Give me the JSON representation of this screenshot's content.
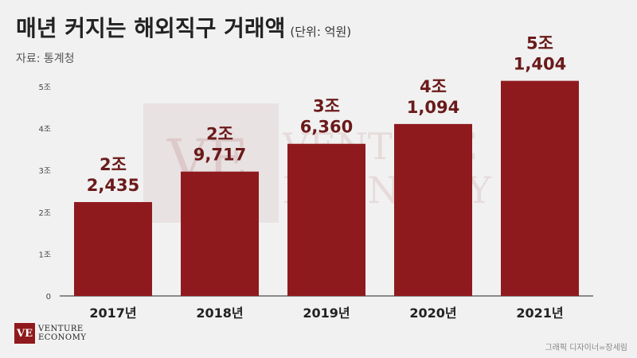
{
  "header": {
    "title": "매년 커지는 해외직구 거래액",
    "unit": "(단위: 억원)",
    "source": "자료: 통계청"
  },
  "watermark": {
    "line1": "VENTURE",
    "line2": "ECONOMY",
    "mark": "VE"
  },
  "logo": {
    "mark": "VE",
    "line1": "VENTURE",
    "line2": "ECONOMY"
  },
  "credit": "그래픽 디자이너=장세림",
  "colors": {
    "bar": "#8f1a1d",
    "label": "#6b1a1a",
    "background": "#f1f1f1"
  },
  "chart_data": {
    "type": "bar",
    "title": "매년 커지는 해외직구 거래액",
    "ylabel": "",
    "xlabel": "",
    "ylim": [
      0,
      5
    ],
    "yticks": [
      0,
      1,
      2,
      3,
      4,
      5
    ],
    "ytick_labels": [
      "0",
      "1조",
      "2조",
      "3조",
      "4조",
      "5조"
    ],
    "categories": [
      "2017년",
      "2018년",
      "2019년",
      "2020년",
      "2021년"
    ],
    "values": [
      22435,
      29717,
      36360,
      41094,
      51404
    ],
    "value_labels": [
      {
        "line1": "2조",
        "line2": "2,435"
      },
      {
        "line1": "2조",
        "line2": "9,717"
      },
      {
        "line1": "3조",
        "line2": "6,360"
      },
      {
        "line1": "4조",
        "line2": "1,094"
      },
      {
        "line1": "5조",
        "line2": "1,404"
      }
    ],
    "grid": false
  }
}
